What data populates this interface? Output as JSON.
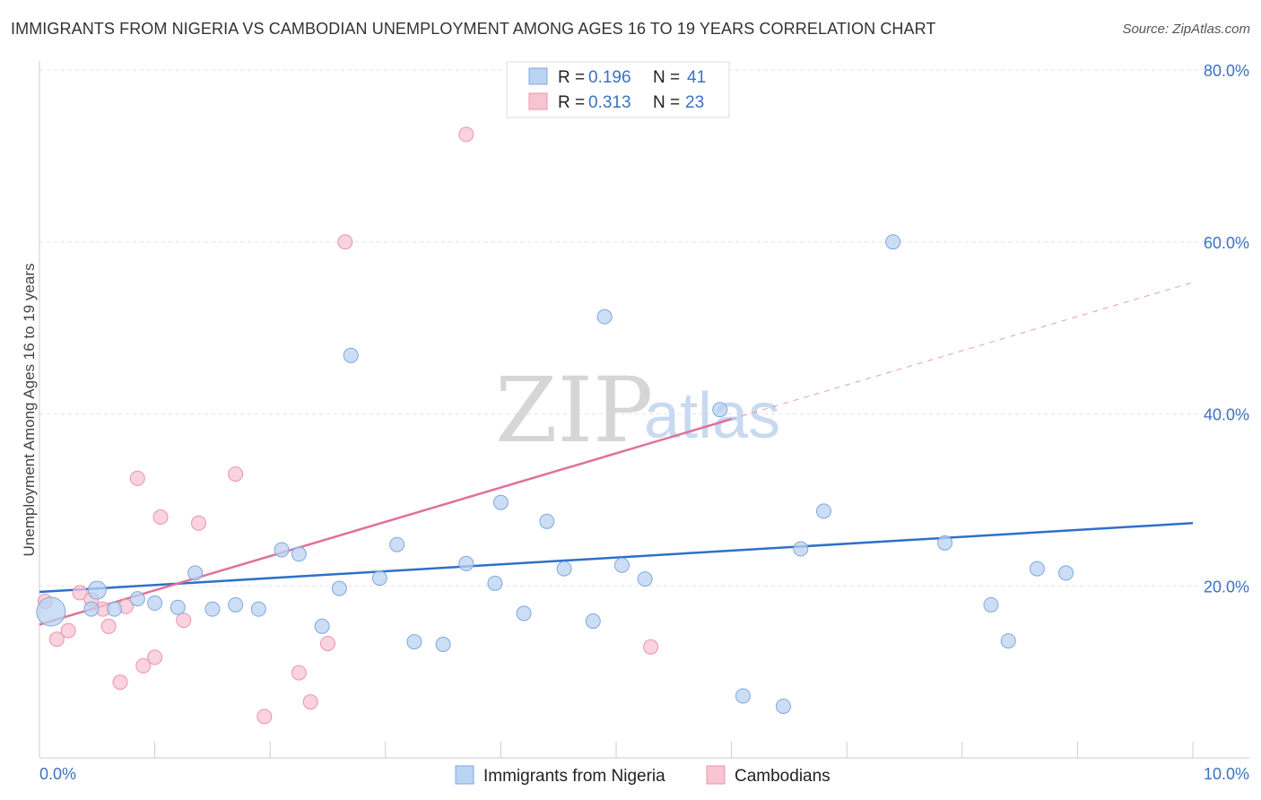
{
  "header": {
    "title": "IMMIGRANTS FROM NIGERIA VS CAMBODIAN UNEMPLOYMENT AMONG AGES 16 TO 19 YEARS CORRELATION CHART",
    "source": "Source: ZipAtlas.com"
  },
  "watermark": {
    "zip": "ZIP",
    "atlas": "atlas"
  },
  "legend": {
    "rows": [
      {
        "r_label": "R = ",
        "r_value": "0.196",
        "n_label": "N = ",
        "n_value": "41"
      },
      {
        "r_label": "R = ",
        "r_value": "0.313",
        "n_label": "N = ",
        "n_value": "23"
      }
    ]
  },
  "bottom_legend": {
    "items": [
      {
        "label": "Immigrants from Nigeria"
      },
      {
        "label": "Cambodians"
      }
    ]
  },
  "chart_data": {
    "type": "scatter",
    "title": "IMMIGRANTS FROM NIGERIA VS CAMBODIAN UNEMPLOYMENT AMONG AGES 16 TO 19 YEARS CORRELATION CHART",
    "xlabel": "",
    "ylabel": "Unemployment Among Ages 16 to 19 years",
    "xlim": [
      0,
      10
    ],
    "ylim": [
      0,
      80
    ],
    "x_tick_labels": [
      "0.0%",
      "10.0%"
    ],
    "y_ticks": [
      20,
      40,
      60,
      80
    ],
    "y_tick_labels": [
      "20.0%",
      "40.0%",
      "60.0%",
      "80.0%"
    ],
    "grid": true,
    "colors": {
      "nigeria_fill": "#b9d3f2",
      "nigeria_stroke": "#7fa8dc",
      "nigeria_line": "#2e70c9",
      "cambodian_fill": "#f7c4d3",
      "cambodian_stroke": "#ec93ae",
      "cambodian_line": "#e0709a",
      "tick_text": "#3a72c4"
    },
    "series": [
      {
        "name": "Immigrants from Nigeria",
        "r": 0.196,
        "n": 41,
        "points": [
          [
            0.1,
            17.0,
            16
          ],
          [
            0.5,
            19.5,
            10
          ],
          [
            0.45,
            17.3,
            8
          ],
          [
            0.65,
            17.3,
            8
          ],
          [
            0.85,
            18.5,
            8
          ],
          [
            1.0,
            18.0,
            8
          ],
          [
            1.2,
            17.5,
            8
          ],
          [
            1.35,
            21.5,
            8
          ],
          [
            1.5,
            17.3,
            8
          ],
          [
            1.7,
            17.8,
            8
          ],
          [
            1.9,
            17.3,
            8
          ],
          [
            2.1,
            24.2,
            8
          ],
          [
            2.25,
            23.7,
            8
          ],
          [
            2.45,
            15.3,
            8
          ],
          [
            2.6,
            19.7,
            8
          ],
          [
            2.7,
            46.8,
            8
          ],
          [
            2.95,
            20.9,
            8
          ],
          [
            3.1,
            24.8,
            8
          ],
          [
            3.25,
            13.5,
            8
          ],
          [
            3.5,
            13.2,
            8
          ],
          [
            3.7,
            22.6,
            8
          ],
          [
            3.95,
            20.3,
            8
          ],
          [
            4.0,
            29.7,
            8
          ],
          [
            4.2,
            16.8,
            8
          ],
          [
            4.4,
            27.5,
            8
          ],
          [
            4.55,
            22.0,
            8
          ],
          [
            4.8,
            15.9,
            8
          ],
          [
            4.9,
            51.3,
            8
          ],
          [
            5.05,
            22.4,
            8
          ],
          [
            5.25,
            20.8,
            8
          ],
          [
            5.9,
            40.5,
            8
          ],
          [
            6.1,
            7.2,
            8
          ],
          [
            6.45,
            6.0,
            8
          ],
          [
            6.6,
            24.3,
            8
          ],
          [
            6.8,
            28.7,
            8
          ],
          [
            7.4,
            60.0,
            8
          ],
          [
            7.85,
            25.0,
            8
          ],
          [
            8.25,
            17.8,
            8
          ],
          [
            8.4,
            13.6,
            8
          ],
          [
            8.65,
            22.0,
            8
          ],
          [
            8.9,
            21.5,
            8
          ]
        ],
        "trendline": {
          "x": [
            0,
            10
          ],
          "y": [
            19.3,
            27.3
          ]
        }
      },
      {
        "name": "Cambodians",
        "r": 0.313,
        "n": 23,
        "points": [
          [
            0.05,
            18.2,
            8
          ],
          [
            0.15,
            13.8,
            8
          ],
          [
            0.25,
            14.8,
            8
          ],
          [
            0.35,
            19.2,
            8
          ],
          [
            0.45,
            18.4,
            8
          ],
          [
            0.55,
            17.3,
            8
          ],
          [
            0.6,
            15.3,
            8
          ],
          [
            0.7,
            8.8,
            8
          ],
          [
            0.75,
            17.6,
            8
          ],
          [
            0.85,
            32.5,
            8
          ],
          [
            0.9,
            10.7,
            8
          ],
          [
            1.0,
            11.7,
            8
          ],
          [
            1.05,
            28.0,
            8
          ],
          [
            1.25,
            16.0,
            8
          ],
          [
            1.38,
            27.3,
            8
          ],
          [
            1.7,
            33.0,
            8
          ],
          [
            1.95,
            4.8,
            8
          ],
          [
            2.25,
            9.9,
            8
          ],
          [
            2.35,
            6.5,
            8
          ],
          [
            2.5,
            13.3,
            8
          ],
          [
            2.65,
            60.0,
            8
          ],
          [
            3.7,
            72.5,
            8
          ],
          [
            5.3,
            12.9,
            8
          ]
        ],
        "trendline": {
          "x": [
            0,
            6
          ],
          "y": [
            15.5,
            39.4
          ]
        },
        "trendline_dashed": {
          "x": [
            6,
            10
          ],
          "y": [
            39.4,
            55.3
          ]
        }
      }
    ]
  }
}
